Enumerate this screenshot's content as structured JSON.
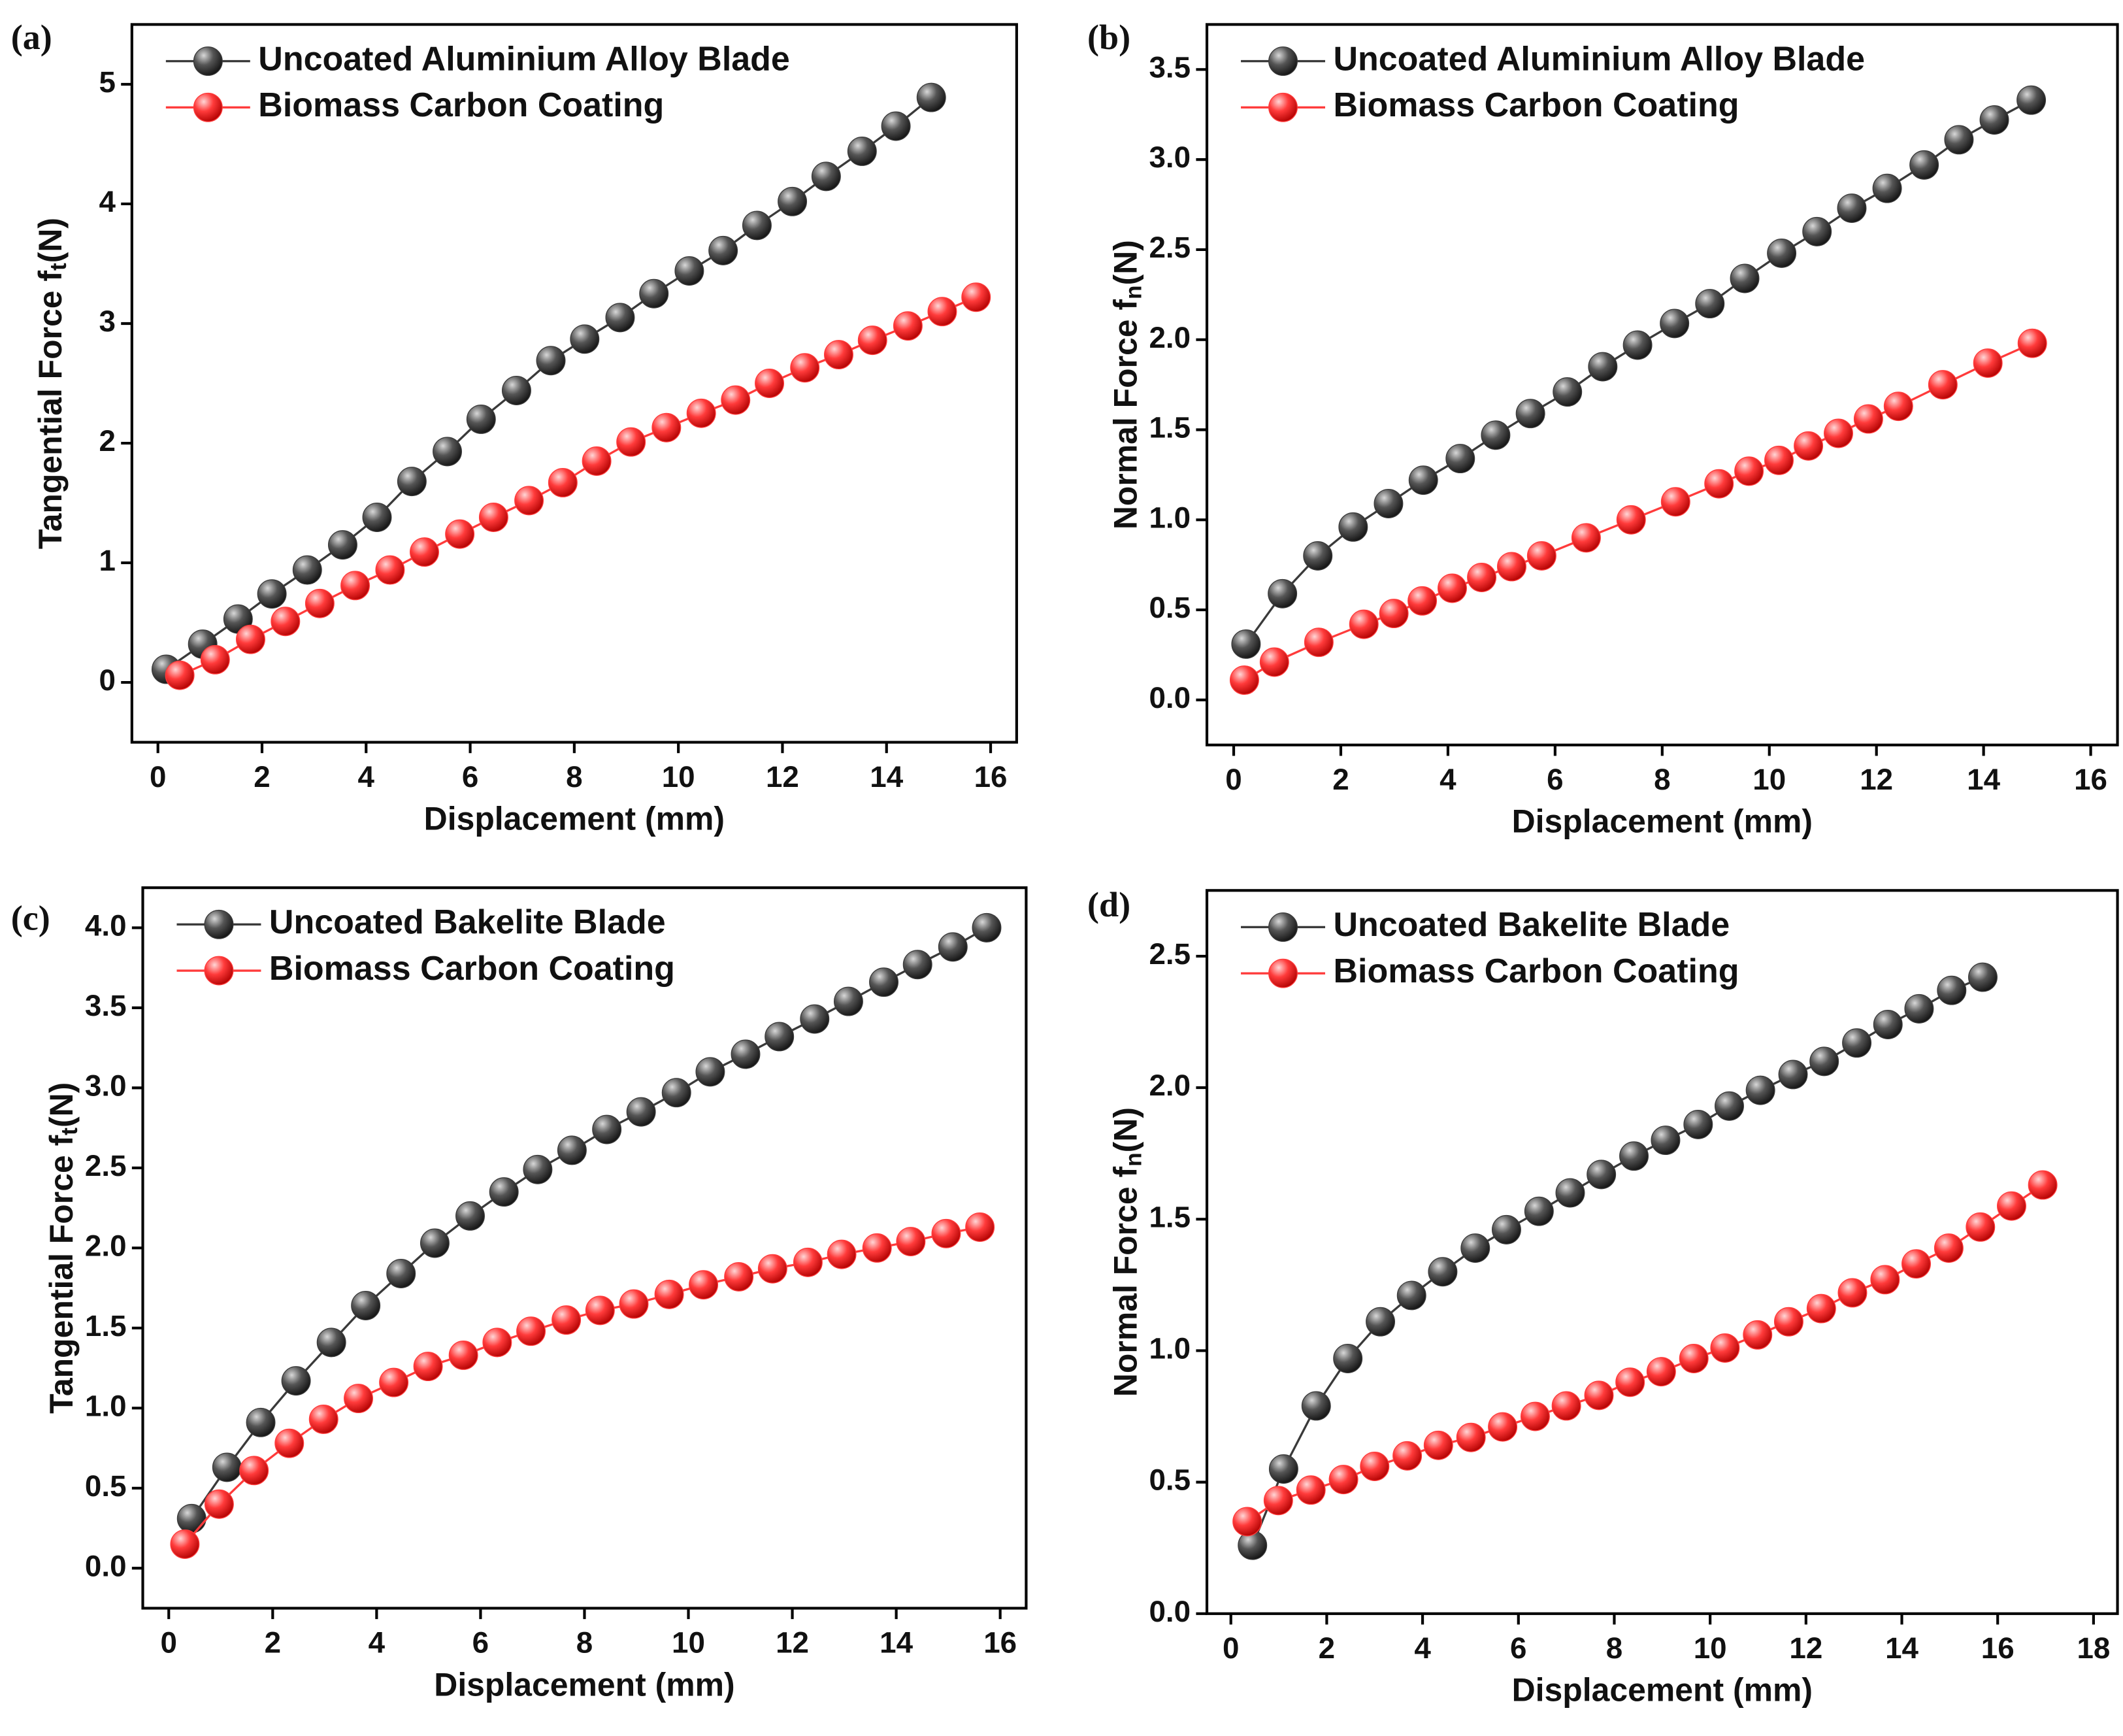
{
  "chart_data": [
    {
      "type": "line",
      "panel": "(a)",
      "xlabel": "Displacement (mm)",
      "ylabel": [
        "Tangential Force f",
        "t",
        "(N)"
      ],
      "legend": "top-left",
      "xlim": [
        -0.5,
        16.5
      ],
      "ylim": [
        -0.5,
        5.5
      ],
      "xticks": [
        0,
        2,
        4,
        6,
        8,
        10,
        12,
        14,
        16
      ],
      "yticks": [
        0,
        1,
        2,
        3,
        4,
        5
      ],
      "series": [
        {
          "name": "Uncoated Aluminium Alloy Blade",
          "color": "#3a3a3a",
          "x": [
            0.16,
            0.86,
            1.54,
            2.19,
            2.87,
            3.55,
            4.21,
            4.88,
            5.56,
            6.21,
            6.89,
            7.55,
            8.2,
            8.88,
            9.53,
            10.21,
            10.86,
            11.51,
            12.19,
            12.84,
            13.53,
            14.18,
            14.86
          ],
          "values": [
            0.11,
            0.32,
            0.53,
            0.74,
            0.94,
            1.15,
            1.38,
            1.68,
            1.93,
            2.2,
            2.44,
            2.69,
            2.87,
            3.05,
            3.25,
            3.44,
            3.61,
            3.82,
            4.02,
            4.23,
            4.44,
            4.65,
            4.89
          ]
        },
        {
          "name": "Biomass Carbon Coating",
          "color": "#ff3b3b",
          "x": [
            0.42,
            1.1,
            1.78,
            2.45,
            3.11,
            3.79,
            4.46,
            5.12,
            5.8,
            6.45,
            7.13,
            7.78,
            8.43,
            9.09,
            9.77,
            10.44,
            11.1,
            11.75,
            12.43,
            13.08,
            13.73,
            14.41,
            15.07,
            15.72
          ],
          "values": [
            0.06,
            0.19,
            0.36,
            0.51,
            0.66,
            0.81,
            0.94,
            1.09,
            1.24,
            1.38,
            1.52,
            1.67,
            1.85,
            2.01,
            2.13,
            2.25,
            2.36,
            2.5,
            2.63,
            2.74,
            2.86,
            2.98,
            3.1,
            3.22
          ]
        }
      ]
    },
    {
      "type": "line",
      "panel": "(b)",
      "xlabel": "Displacement (mm)",
      "ylabel": [
        "Normal Force f",
        "n",
        "(N)"
      ],
      "legend": "top-left",
      "xlim": [
        -0.5,
        16.5
      ],
      "ylim": [
        -0.25,
        3.75
      ],
      "xticks": [
        0,
        2,
        4,
        6,
        8,
        10,
        12,
        14,
        16
      ],
      "yticks": [
        {
          "value": 0,
          "label": "0.0"
        },
        0.5,
        {
          "value": 1,
          "label": "1.0"
        },
        1.5,
        {
          "value": 2,
          "label": "2.0"
        },
        2.5,
        {
          "value": 3,
          "label": "3.0"
        },
        3.5
      ],
      "series": [
        {
          "name": "Uncoated Aluminium Alloy Blade",
          "color": "#3a3a3a",
          "x": [
            0.23,
            0.91,
            1.57,
            2.23,
            2.89,
            3.54,
            4.23,
            4.89,
            5.54,
            6.23,
            6.89,
            7.54,
            8.23,
            8.89,
            9.54,
            10.23,
            10.89,
            11.54,
            12.2,
            12.89,
            13.54,
            14.2,
            14.89
          ],
          "values": [
            0.31,
            0.59,
            0.8,
            0.96,
            1.09,
            1.22,
            1.34,
            1.47,
            1.59,
            1.71,
            1.85,
            1.97,
            2.09,
            2.2,
            2.34,
            2.48,
            2.6,
            2.73,
            2.84,
            2.97,
            3.11,
            3.22,
            3.33
          ]
        },
        {
          "name": "Biomass Carbon Coating",
          "color": "#ff3b3b",
          "x": [
            0.2,
            0.76,
            1.59,
            2.43,
            2.99,
            3.52,
            4.08,
            4.63,
            5.19,
            5.75,
            6.58,
            7.42,
            8.25,
            9.06,
            9.62,
            10.18,
            10.73,
            11.29,
            11.85,
            12.41,
            13.24,
            14.08,
            14.91
          ],
          "values": [
            0.11,
            0.21,
            0.32,
            0.42,
            0.48,
            0.55,
            0.62,
            0.68,
            0.74,
            0.8,
            0.9,
            1.0,
            1.1,
            1.2,
            1.27,
            1.33,
            1.41,
            1.48,
            1.56,
            1.63,
            1.75,
            1.87,
            1.98
          ]
        }
      ]
    },
    {
      "type": "line",
      "panel": "(c)",
      "xlabel": "Displacement (mm)",
      "ylabel": [
        "Tangential Force f",
        "t",
        "(N)"
      ],
      "legend": "top-left",
      "xlim": [
        -0.5,
        16.5
      ],
      "ylim": [
        -0.25,
        4.25
      ],
      "xticks": [
        0,
        2,
        4,
        6,
        8,
        10,
        12,
        14,
        16
      ],
      "yticks": [
        {
          "value": 0,
          "label": "0.0"
        },
        0.5,
        {
          "value": 1,
          "label": "1.0"
        },
        1.5,
        {
          "value": 2,
          "label": "2.0"
        },
        2.5,
        {
          "value": 3,
          "label": "3.0"
        },
        3.5,
        {
          "value": 4,
          "label": "4.0"
        }
      ],
      "series": [
        {
          "name": "Uncoated Bakelite Blade",
          "color": "#3a3a3a",
          "x": [
            0.44,
            1.12,
            1.77,
            2.45,
            3.13,
            3.79,
            4.47,
            5.12,
            5.8,
            6.45,
            7.1,
            7.76,
            8.43,
            9.09,
            9.77,
            10.42,
            11.1,
            11.75,
            12.43,
            13.08,
            13.76,
            14.41,
            15.09,
            15.74
          ],
          "values": [
            0.31,
            0.63,
            0.91,
            1.17,
            1.41,
            1.64,
            1.84,
            2.03,
            2.2,
            2.35,
            2.49,
            2.61,
            2.74,
            2.85,
            2.97,
            3.1,
            3.21,
            3.32,
            3.43,
            3.54,
            3.66,
            3.77,
            3.88,
            4.0
          ]
        },
        {
          "name": "Biomass Carbon Coating",
          "color": "#ff3b3b",
          "x": [
            0.31,
            0.97,
            1.64,
            2.32,
            2.98,
            3.65,
            4.33,
            4.99,
            5.67,
            6.32,
            6.97,
            7.65,
            8.3,
            8.95,
            9.63,
            10.29,
            10.97,
            11.62,
            12.3,
            12.95,
            13.63,
            14.28,
            14.96,
            15.61
          ],
          "values": [
            0.15,
            0.4,
            0.61,
            0.78,
            0.93,
            1.06,
            1.16,
            1.26,
            1.33,
            1.41,
            1.48,
            1.55,
            1.61,
            1.65,
            1.71,
            1.77,
            1.82,
            1.87,
            1.91,
            1.96,
            2.0,
            2.04,
            2.09,
            2.13
          ]
        }
      ]
    },
    {
      "type": "line",
      "panel": "(d)",
      "xlabel": "Displacement (mm)",
      "ylabel": [
        "Normal Force f",
        "n",
        "(N)"
      ],
      "legend": "top-left",
      "xlim": [
        -0.5,
        18.5
      ],
      "ylim": [
        0,
        2.75
      ],
      "xticks": [
        0,
        2,
        4,
        6,
        8,
        10,
        12,
        14,
        16,
        18
      ],
      "yticks": [
        {
          "value": 0,
          "label": "0.0"
        },
        0.5,
        {
          "value": 1,
          "label": "1.0"
        },
        1.5,
        {
          "value": 2,
          "label": "2.0"
        },
        2.5
      ],
      "series": [
        {
          "name": "Uncoated Bakelite Blade",
          "color": "#3a3a3a",
          "x": [
            0.45,
            1.1,
            1.78,
            2.44,
            3.12,
            3.77,
            4.42,
            5.1,
            5.75,
            6.43,
            7.08,
            7.73,
            8.41,
            9.07,
            9.75,
            10.4,
            11.05,
            11.73,
            12.38,
            13.06,
            13.71,
            14.36,
            15.04,
            15.69
          ],
          "values": [
            0.26,
            0.55,
            0.79,
            0.97,
            1.11,
            1.21,
            1.3,
            1.39,
            1.46,
            1.53,
            1.6,
            1.67,
            1.74,
            1.8,
            1.86,
            1.93,
            1.99,
            2.05,
            2.1,
            2.17,
            2.24,
            2.3,
            2.37,
            2.42
          ]
        },
        {
          "name": "Biomass Carbon Coating",
          "color": "#ff3b3b",
          "x": [
            0.34,
            0.99,
            1.67,
            2.35,
            3.0,
            3.68,
            4.33,
            5.01,
            5.67,
            6.35,
            7.0,
            7.68,
            8.33,
            8.98,
            9.66,
            10.31,
            10.99,
            11.64,
            12.32,
            12.97,
            13.65,
            14.3,
            14.98,
            15.64,
            16.29,
            16.94
          ],
          "values": [
            0.35,
            0.43,
            0.47,
            0.51,
            0.56,
            0.6,
            0.64,
            0.67,
            0.71,
            0.75,
            0.79,
            0.83,
            0.88,
            0.92,
            0.97,
            1.01,
            1.06,
            1.11,
            1.16,
            1.22,
            1.27,
            1.33,
            1.39,
            1.47,
            1.55,
            1.63
          ]
        }
      ]
    }
  ]
}
